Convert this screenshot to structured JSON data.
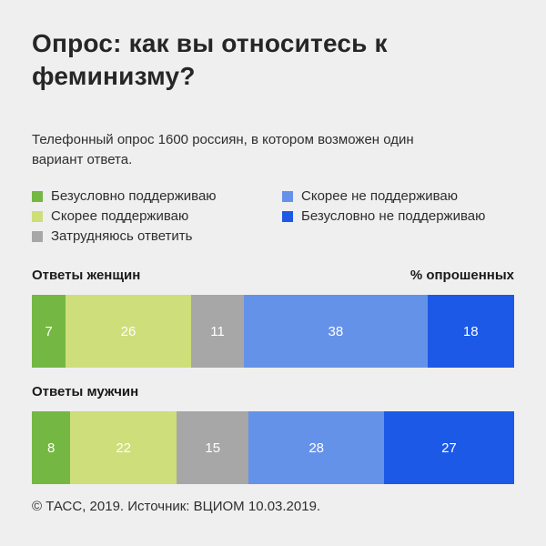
{
  "page": {
    "background_color": "#efefef",
    "title": "Опрос: как вы относитесь к феминизму?",
    "subtitle": "Телефонный опрос 1600 россиян, в котором возможен один вариант ответа.",
    "unit_label": "% опрошенных",
    "footer": "© ТАСС, 2019. Источник: ВЦИОМ 10.03.2019."
  },
  "chart_data": {
    "type": "bar",
    "stacked": true,
    "orientation": "horizontal",
    "title": "Опрос: как вы относитесь к феминизму?",
    "subtitle": "Телефонный опрос 1600 россиян, в котором возможен один вариант ответа.",
    "unit_label": "% опрошенных",
    "value_range": [
      0,
      100
    ],
    "grid": false,
    "legend_position": "top",
    "categories": [
      "Ответы женщин",
      "Ответы мужчин"
    ],
    "series": [
      {
        "name": "Безусловно поддерживаю",
        "color": "#74b843",
        "values": [
          7,
          8
        ]
      },
      {
        "name": "Скорее поддерживаю",
        "color": "#cede7a",
        "values": [
          26,
          22
        ]
      },
      {
        "name": "Затрудняюсь ответить",
        "color": "#a7a7a7",
        "values": [
          11,
          15
        ]
      },
      {
        "name": "Скорее не поддерживаю",
        "color": "#6592e9",
        "values": [
          38,
          28
        ]
      },
      {
        "name": "Безусловно не поддерживаю",
        "color": "#1b59e6",
        "values": [
          18,
          27
        ]
      }
    ],
    "footer": "© ТАСС, 2019. Источник: ВЦИОМ 10.03.2019."
  }
}
